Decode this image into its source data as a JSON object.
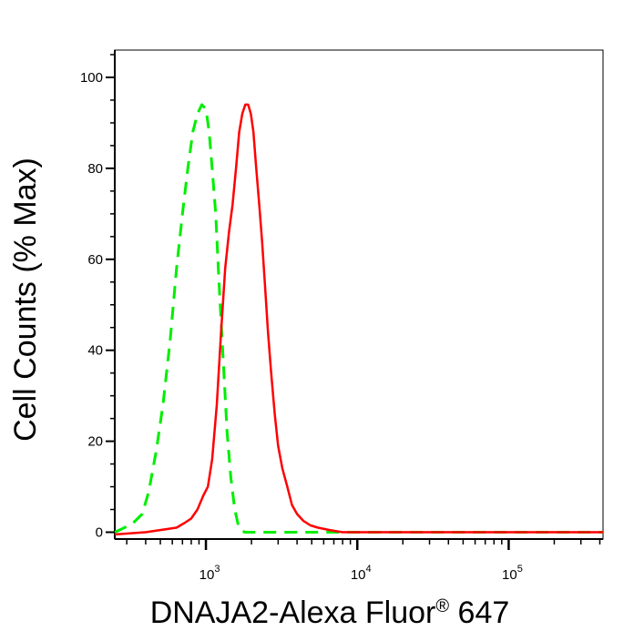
{
  "chart_data": {
    "type": "line",
    "title": "",
    "xlabel": "DNAJA2-Alexa Fluor",
    "xlabel_superscript": "®",
    "xlabel_suffix": " 647",
    "ylabel": "Cell Counts (% Max)",
    "x_scale": "log",
    "xlim": [
      250,
      420000
    ],
    "ylim": [
      -1.5,
      106
    ],
    "x_ticks": [
      {
        "base": "10",
        "exp": "3",
        "value": 1000
      },
      {
        "base": "10",
        "exp": "4",
        "value": 10000
      },
      {
        "base": "10",
        "exp": "5",
        "value": 100000
      }
    ],
    "y_ticks": [
      {
        "label": "0",
        "value": 0
      },
      {
        "label": "20",
        "value": 20
      },
      {
        "label": "40",
        "value": 40
      },
      {
        "label": "60",
        "value": 60
      },
      {
        "label": "80",
        "value": 80
      },
      {
        "label": "100",
        "value": 100
      }
    ],
    "grid": false,
    "series": [
      {
        "color": "#00ee00",
        "style": "dashed",
        "points": [
          [
            250,
            0
          ],
          [
            290,
            1
          ],
          [
            330,
            2
          ],
          [
            380,
            4
          ],
          [
            420,
            9
          ],
          [
            470,
            18
          ],
          [
            520,
            28
          ],
          [
            580,
            42
          ],
          [
            640,
            58
          ],
          [
            700,
            70
          ],
          [
            760,
            80
          ],
          [
            820,
            88
          ],
          [
            880,
            92
          ],
          [
            940,
            94
          ],
          [
            1000,
            93
          ],
          [
            1050,
            88
          ],
          [
            1100,
            80
          ],
          [
            1160,
            70
          ],
          [
            1220,
            55
          ],
          [
            1300,
            38
          ],
          [
            1380,
            22
          ],
          [
            1460,
            12
          ],
          [
            1550,
            5
          ],
          [
            1650,
            1
          ],
          [
            1800,
            0
          ],
          [
            2500,
            0
          ],
          [
            5000,
            0
          ],
          [
            10000,
            0
          ],
          [
            50000,
            0
          ],
          [
            420000,
            0
          ]
        ]
      },
      {
        "color": "#ff0000",
        "style": "solid",
        "points": [
          [
            250,
            -0.5
          ],
          [
            400,
            0
          ],
          [
            530,
            0.6
          ],
          [
            640,
            1
          ],
          [
            720,
            2
          ],
          [
            800,
            3
          ],
          [
            880,
            5
          ],
          [
            960,
            8
          ],
          [
            1030,
            10
          ],
          [
            1100,
            16
          ],
          [
            1180,
            28
          ],
          [
            1260,
            44
          ],
          [
            1340,
            58
          ],
          [
            1420,
            66
          ],
          [
            1500,
            72
          ],
          [
            1580,
            80
          ],
          [
            1660,
            88
          ],
          [
            1740,
            92
          ],
          [
            1820,
            94
          ],
          [
            1900,
            94
          ],
          [
            1980,
            92
          ],
          [
            2060,
            88
          ],
          [
            2150,
            80
          ],
          [
            2250,
            72
          ],
          [
            2350,
            64
          ],
          [
            2460,
            54
          ],
          [
            2570,
            44
          ],
          [
            2700,
            35
          ],
          [
            2850,
            26
          ],
          [
            3000,
            19
          ],
          [
            3200,
            14
          ],
          [
            3450,
            10
          ],
          [
            3700,
            6
          ],
          [
            4000,
            4
          ],
          [
            4400,
            2.5
          ],
          [
            4900,
            1.5
          ],
          [
            5500,
            1
          ],
          [
            6500,
            0.5
          ],
          [
            8000,
            0
          ],
          [
            10000,
            0
          ],
          [
            50000,
            0
          ],
          [
            420000,
            0
          ]
        ]
      }
    ]
  }
}
